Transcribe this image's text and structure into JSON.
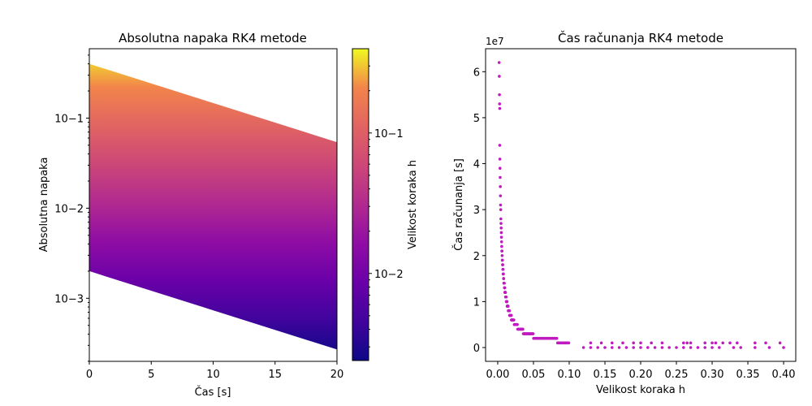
{
  "chart_data": [
    {
      "type": "heatmap",
      "title": "Absolutna napaka RK4 metode",
      "xlabel": "Čas [s]",
      "ylabel": "Absolutna napaka",
      "xlim": [
        0,
        20
      ],
      "ylim_log10": [
        -3.7,
        -0.23
      ],
      "xticks": [
        0,
        5,
        10,
        15,
        20
      ],
      "xtick_labels": [
        "0",
        "5",
        "10",
        "15",
        "20"
      ],
      "yticks_log10": [
        -3,
        -2,
        -1
      ],
      "ytick_labels": [
        "10−3",
        "10−2",
        "10−1"
      ],
      "band_top": {
        "at_t0": 0.4,
        "at_t20": 0.054
      },
      "band_bottom": {
        "at_t0": 0.002,
        "at_t20": 0.00027
      },
      "colormap": "plasma",
      "colorbar": {
        "label": "Velikost koraka h",
        "range_log10": [
          -2.62,
          -0.4
        ],
        "ticks_log10": [
          -2,
          -1
        ],
        "tick_labels": [
          "10−2",
          "10−1"
        ]
      }
    },
    {
      "type": "scatter",
      "title": "Čas računanja RK4 metode",
      "xlabel": "Velikost koraka h",
      "ylabel": "Čas računanja [s]",
      "offset_label": "1e7",
      "xlim": [
        -0.017,
        0.417
      ],
      "ylim": [
        -0.3,
        6.5
      ],
      "xticks": [
        0,
        0.05,
        0.1,
        0.15,
        0.2,
        0.25,
        0.3,
        0.35,
        0.4
      ],
      "xtick_labels": [
        "0.00",
        "0.05",
        "0.10",
        "0.15",
        "0.20",
        "0.25",
        "0.30",
        "0.35",
        "0.40"
      ],
      "yticks": [
        0,
        1,
        2,
        3,
        4,
        5,
        6
      ],
      "ytick_labels": [
        "0",
        "1",
        "2",
        "3",
        "4",
        "5",
        "6"
      ],
      "point_color": "#bf1bbf",
      "curve_constant": 0.01245,
      "curve_h_range": [
        0.002,
        0.1
      ],
      "points": [
        [
          0.002,
          6.2
        ],
        [
          0.0022,
          5.9
        ],
        [
          0.0024,
          5.5
        ],
        [
          0.0026,
          5.3
        ],
        [
          0.0028,
          5.2
        ],
        [
          0.12,
          0
        ],
        [
          0.13,
          0
        ],
        [
          0.14,
          0
        ],
        [
          0.15,
          0
        ],
        [
          0.16,
          0
        ],
        [
          0.17,
          0
        ],
        [
          0.18,
          0
        ],
        [
          0.19,
          0
        ],
        [
          0.2,
          0
        ],
        [
          0.21,
          0
        ],
        [
          0.22,
          0
        ],
        [
          0.23,
          0
        ],
        [
          0.24,
          0
        ],
        [
          0.25,
          0
        ],
        [
          0.26,
          0
        ],
        [
          0.27,
          0
        ],
        [
          0.28,
          0
        ],
        [
          0.29,
          0
        ],
        [
          0.3,
          0
        ],
        [
          0.31,
          0
        ],
        [
          0.33,
          0
        ],
        [
          0.34,
          0
        ],
        [
          0.36,
          0
        ],
        [
          0.38,
          0
        ],
        [
          0.4,
          0
        ],
        [
          0.13,
          0.1
        ],
        [
          0.145,
          0.1
        ],
        [
          0.16,
          0.1
        ],
        [
          0.175,
          0.1
        ],
        [
          0.19,
          0.1
        ],
        [
          0.2,
          0.1
        ],
        [
          0.215,
          0.1
        ],
        [
          0.23,
          0.1
        ],
        [
          0.26,
          0.1
        ],
        [
          0.265,
          0.1
        ],
        [
          0.27,
          0.1
        ],
        [
          0.29,
          0.1
        ],
        [
          0.3,
          0.1
        ],
        [
          0.305,
          0.1
        ],
        [
          0.315,
          0.1
        ],
        [
          0.325,
          0.1
        ],
        [
          0.335,
          0.1
        ],
        [
          0.36,
          0.1
        ],
        [
          0.375,
          0.1
        ],
        [
          0.395,
          0.1
        ]
      ]
    }
  ]
}
